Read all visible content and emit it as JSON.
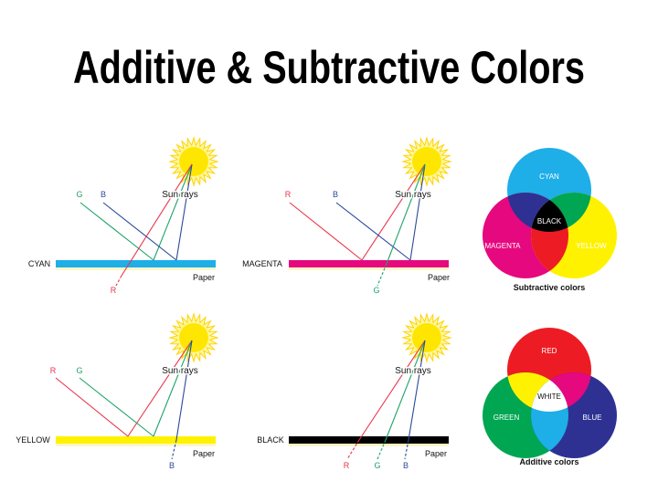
{
  "title": "Additive & Subtractive Colors",
  "colors": {
    "cyan": "#1eaee8",
    "magenta": "#e6087e",
    "yellow": "#fff200",
    "red": "#ed1c24",
    "green": "#00a651",
    "blue": "#2e3192",
    "black": "#000000",
    "white": "#ffffff",
    "ray_red": "#e8354a",
    "ray_green": "#1fa36a",
    "ray_blue": "#2b4a9a",
    "sun": "#ffe600"
  },
  "panels": [
    {
      "paper_label": "CYAN",
      "sun_label": "Sun rays",
      "paper_text": "Paper",
      "reflected": [
        "G",
        "B"
      ],
      "absorbed": [
        "R"
      ]
    },
    {
      "paper_label": "MAGENTA",
      "sun_label": "Sun rays",
      "paper_text": "Paper",
      "reflected": [
        "R",
        "B"
      ],
      "absorbed": [
        "G"
      ]
    },
    {
      "paper_label": "YELLOW",
      "sun_label": "Sun rays",
      "paper_text": "Paper",
      "reflected": [
        "R",
        "G"
      ],
      "absorbed": [
        "B"
      ]
    },
    {
      "paper_label": "BLACK",
      "sun_label": "Sun rays",
      "paper_text": "Paper",
      "reflected": [],
      "absorbed": [
        "R",
        "G",
        "B"
      ]
    }
  ],
  "subtractive": {
    "caption": "Subtractive colors",
    "cyan": "CYAN",
    "magenta": "MAGENTA",
    "yellow": "YELLOW",
    "center": "BLACK"
  },
  "additive": {
    "caption": "Additive colors",
    "red": "RED",
    "green": "GREEN",
    "blue": "BLUE",
    "center": "WHITE"
  }
}
